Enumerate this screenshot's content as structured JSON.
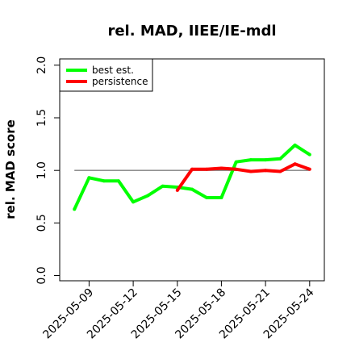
{
  "chart_data": {
    "type": "line",
    "title": "rel. MAD, IIEE/IE-mdl",
    "xlabel": "",
    "ylabel": "rel. MAD score",
    "ylim": [
      0,
      2.0
    ],
    "yticks": [
      0.0,
      0.5,
      1.0,
      1.5,
      2.0
    ],
    "ytick_labels": [
      "0.0",
      "0.5",
      "1.0",
      "1.5",
      "2.0"
    ],
    "xlim": [
      "2025-05-07",
      "2025-05-25"
    ],
    "xtick_labels": [
      "2025-05-09",
      "2025-05-12",
      "2025-05-15",
      "2025-05-18",
      "2025-05-21",
      "2025-05-24"
    ],
    "grid": false,
    "legend_position": "top-left",
    "reference_line": {
      "y": 1.0,
      "x_start": "2025-05-08",
      "x_end": "2025-05-24",
      "color": "#808080"
    },
    "series": [
      {
        "name": "best est.",
        "color": "#00ff00",
        "x": [
          "2025-05-08",
          "2025-05-09",
          "2025-05-10",
          "2025-05-11",
          "2025-05-12",
          "2025-05-13",
          "2025-05-14",
          "2025-05-15",
          "2025-05-16",
          "2025-05-17",
          "2025-05-18",
          "2025-05-19",
          "2025-05-20",
          "2025-05-21",
          "2025-05-22",
          "2025-05-23",
          "2025-05-24"
        ],
        "y": [
          0.63,
          0.93,
          0.9,
          0.9,
          0.7,
          0.76,
          0.85,
          0.84,
          0.82,
          0.74,
          0.74,
          1.08,
          1.1,
          1.1,
          1.11,
          1.24,
          1.15
        ]
      },
      {
        "name": "persistence",
        "color": "#ff0000",
        "x": [
          "2025-05-15",
          "2025-05-16",
          "2025-05-17",
          "2025-05-18",
          "2025-05-19",
          "2025-05-20",
          "2025-05-21",
          "2025-05-22",
          "2025-05-23",
          "2025-05-24"
        ],
        "y": [
          0.81,
          1.01,
          1.01,
          1.02,
          1.01,
          0.99,
          1.0,
          0.99,
          1.06,
          1.01
        ]
      }
    ]
  }
}
